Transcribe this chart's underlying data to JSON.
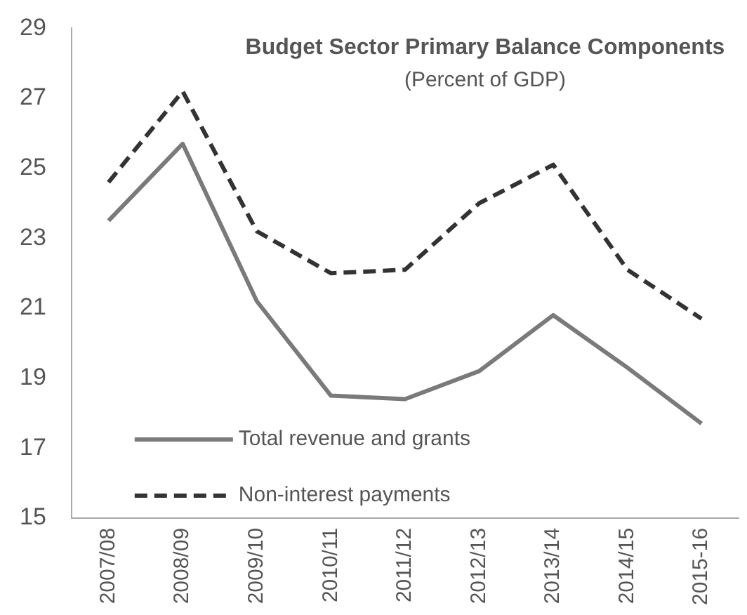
{
  "chart_data": {
    "type": "line",
    "title": "Budget Sector Primary Balance Components",
    "subtitle": "(Percent of GDP)",
    "categories": [
      "2007/08",
      "2008/09",
      "2009/10",
      "2010/11",
      "2011/12",
      "2012/13",
      "2013/14",
      "2014/15",
      "2015-16"
    ],
    "series": [
      {
        "name": "Total revenue and grants",
        "color": "#7a7a7a",
        "line_style": "solid",
        "values": [
          23.5,
          25.7,
          21.2,
          18.5,
          18.4,
          19.2,
          20.8,
          19.3,
          17.7
        ]
      },
      {
        "name": "Non-interest payments",
        "color": "#333333",
        "line_style": "dashed",
        "values": [
          24.6,
          27.2,
          23.2,
          22.0,
          22.1,
          24.0,
          25.1,
          22.1,
          20.7
        ]
      }
    ],
    "ylim": [
      15,
      29
    ],
    "yticks": [
      15,
      17,
      19,
      21,
      23,
      25,
      27,
      29
    ],
    "grid": false,
    "legend": "bottom left",
    "marker": "none"
  }
}
